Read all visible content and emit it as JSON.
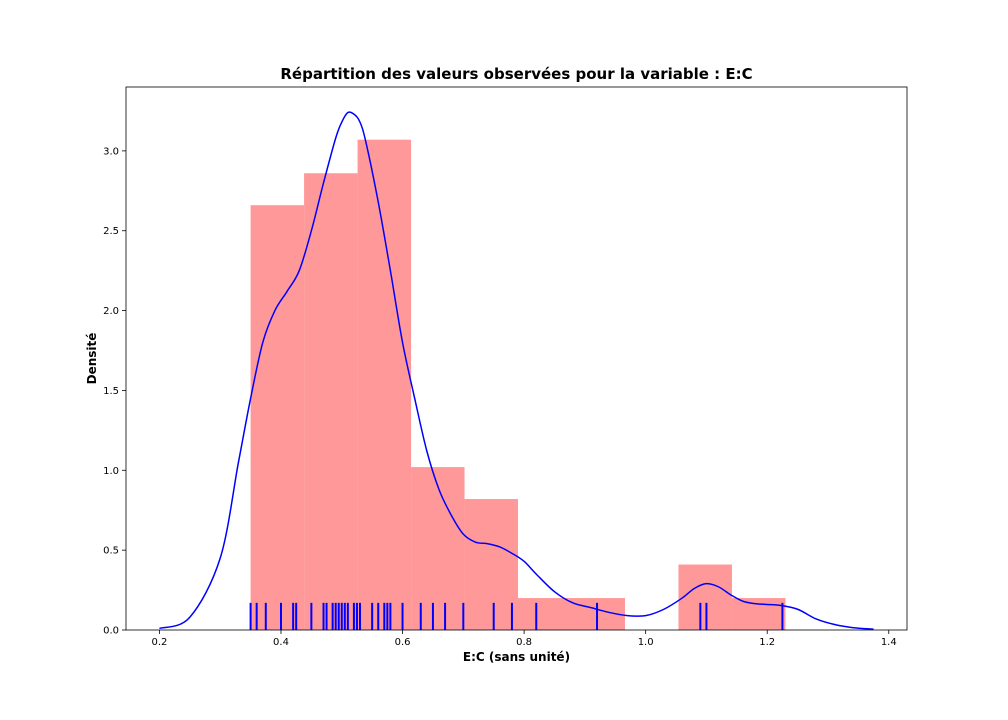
{
  "chart_data": {
    "type": "histogram",
    "title": "Répartition des valeurs observées pour la variable : E:C",
    "xlabel": "E:C (sans unité)",
    "ylabel": "Densité",
    "xlim": [
      0.145,
      1.43
    ],
    "ylim": [
      0,
      3.4
    ],
    "xticks": [
      0.2,
      0.4,
      0.6,
      0.8,
      1.0,
      1.2,
      1.4
    ],
    "xtick_labels": [
      "0.2",
      "0.4",
      "0.6",
      "0.8",
      "1.0",
      "1.2",
      "1.4"
    ],
    "yticks": [
      0.0,
      0.5,
      1.0,
      1.5,
      2.0,
      2.5,
      3.0
    ],
    "ytick_labels": [
      "0.0",
      "0.5",
      "1.0",
      "1.5",
      "2.0",
      "2.5",
      "3.0"
    ],
    "grid": false,
    "colors": {
      "histogram": "#ff9999",
      "kde": "#0000ff",
      "rug": "#0000ff"
    },
    "histogram": {
      "bin_edges": [
        0.35,
        0.438,
        0.526,
        0.614,
        0.702,
        0.79,
        0.878,
        0.966,
        1.054,
        1.142,
        1.23
      ],
      "densities": [
        2.66,
        2.86,
        3.07,
        1.02,
        0.82,
        0.2,
        0.2,
        0.0,
        0.41,
        0.2
      ]
    },
    "kde": {
      "x": [
        0.2,
        0.25,
        0.3,
        0.33,
        0.35,
        0.37,
        0.39,
        0.41,
        0.43,
        0.45,
        0.47,
        0.49,
        0.5,
        0.51,
        0.52,
        0.53,
        0.54,
        0.56,
        0.58,
        0.6,
        0.62,
        0.64,
        0.66,
        0.68,
        0.7,
        0.72,
        0.74,
        0.76,
        0.78,
        0.8,
        0.82,
        0.85,
        0.88,
        0.91,
        0.94,
        0.97,
        1.0,
        1.03,
        1.06,
        1.08,
        1.1,
        1.12,
        1.14,
        1.16,
        1.18,
        1.2,
        1.22,
        1.25,
        1.28,
        1.31,
        1.34,
        1.375
      ],
      "y": [
        0.01,
        0.08,
        0.45,
        1.05,
        1.45,
        1.8,
        2.0,
        2.12,
        2.25,
        2.5,
        2.8,
        3.08,
        3.18,
        3.24,
        3.23,
        3.18,
        3.05,
        2.68,
        2.25,
        1.8,
        1.45,
        1.12,
        0.88,
        0.72,
        0.6,
        0.55,
        0.54,
        0.52,
        0.48,
        0.43,
        0.35,
        0.24,
        0.17,
        0.14,
        0.11,
        0.09,
        0.09,
        0.13,
        0.2,
        0.26,
        0.29,
        0.27,
        0.22,
        0.18,
        0.165,
        0.16,
        0.155,
        0.13,
        0.07,
        0.035,
        0.015,
        0.005
      ]
    },
    "rug": {
      "values": [
        0.35,
        0.36,
        0.375,
        0.4,
        0.42,
        0.425,
        0.45,
        0.47,
        0.475,
        0.485,
        0.49,
        0.495,
        0.5,
        0.505,
        0.51,
        0.52,
        0.525,
        0.53,
        0.55,
        0.56,
        0.57,
        0.575,
        0.58,
        0.6,
        0.63,
        0.65,
        0.67,
        0.7,
        0.75,
        0.78,
        0.82,
        0.92,
        1.09,
        1.1,
        1.225
      ],
      "height": 0.17
    }
  }
}
